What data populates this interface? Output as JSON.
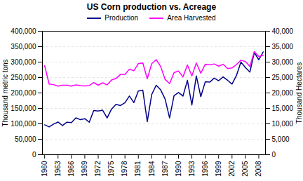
{
  "chart_data": {
    "type": "line",
    "title": "US Corn production vs. Acreage",
    "ylabel": "Thousand metric tons",
    "y2label": "Thousand Hectares",
    "x": [
      1960,
      1961,
      1962,
      1963,
      1964,
      1965,
      1966,
      1967,
      1968,
      1969,
      1970,
      1971,
      1972,
      1973,
      1974,
      1975,
      1976,
      1977,
      1978,
      1979,
      1980,
      1981,
      1982,
      1983,
      1984,
      1985,
      1986,
      1987,
      1988,
      1989,
      1990,
      1991,
      1992,
      1993,
      1994,
      1995,
      1996,
      1997,
      1998,
      1999,
      2000,
      2001,
      2002,
      2003,
      2004,
      2005,
      2006,
      2007,
      2008,
      2009
    ],
    "xlim": [
      1959.5,
      2009.5
    ],
    "xticks": [
      1960,
      1963,
      1966,
      1969,
      1972,
      1975,
      1978,
      1981,
      1984,
      1987,
      1990,
      1993,
      1996,
      1999,
      2002,
      2005,
      2008
    ],
    "ylim": [
      0,
      400000
    ],
    "yticks": [
      0,
      {
        "value": 50000,
        "label": "50,000"
      },
      {
        "value": 100000,
        "label": "100,000"
      },
      {
        "value": 150000,
        "label": "150,000"
      },
      {
        "value": 200000,
        "label": "200,000"
      },
      {
        "value": 250000,
        "label": "250,000"
      },
      {
        "value": 300000,
        "label": "300,000"
      },
      {
        "value": 350000,
        "label": "350,000"
      },
      {
        "value": 400000,
        "label": "400,000"
      }
    ],
    "y2lim": [
      0,
      40000
    ],
    "y2ticks": [
      0,
      {
        "value": 5000,
        "label": "5,000"
      },
      {
        "value": 10000,
        "label": "10,000"
      },
      {
        "value": 15000,
        "label": "15,000"
      },
      {
        "value": 20000,
        "label": "20,000"
      },
      {
        "value": 25000,
        "label": "25,000"
      },
      {
        "value": 30000,
        "label": "30,000"
      },
      {
        "value": 35000,
        "label": "35,000"
      },
      {
        "value": 40000,
        "label": "40,000"
      }
    ],
    "grid": true,
    "legend": "top",
    "series": [
      {
        "name": "Production",
        "color": "#00008B",
        "values": [
          96800,
          90200,
          99200,
          105800,
          94400,
          105400,
          104200,
          119300,
          113400,
          116700,
          105200,
          143200,
          141700,
          144100,
          119100,
          147900,
          163100,
          159300,
          168500,
          190000,
          168600,
          206300,
          209100,
          107000,
          195000,
          225100,
          210000,
          180300,
          119200,
          191200,
          201500,
          189900,
          240700,
          160900,
          255300,
          188000,
          236100,
          235000,
          248000,
          239700,
          252000,
          241000,
          228800,
          256900,
          299900,
          282300,
          267600,
          331200,
          307400,
          333000
        ]
      },
      {
        "name": "Area Harvested",
        "color": "#FF00FF",
        "axis": "y2",
        "values": [
          28800,
          22900,
          22700,
          22200,
          22500,
          22500,
          22200,
          22600,
          22400,
          22300,
          22400,
          23400,
          22500,
          23300,
          22600,
          24200,
          24700,
          26000,
          26000,
          27700,
          27200,
          29500,
          29700,
          24600,
          29500,
          30800,
          28600,
          24400,
          23000,
          26600,
          27100,
          25200,
          29100,
          25500,
          29700,
          26400,
          29300,
          29100,
          29400,
          28700,
          29300,
          27900,
          28100,
          29200,
          30600,
          30200,
          28600,
          33400,
          31800,
          32200
        ]
      }
    ]
  }
}
